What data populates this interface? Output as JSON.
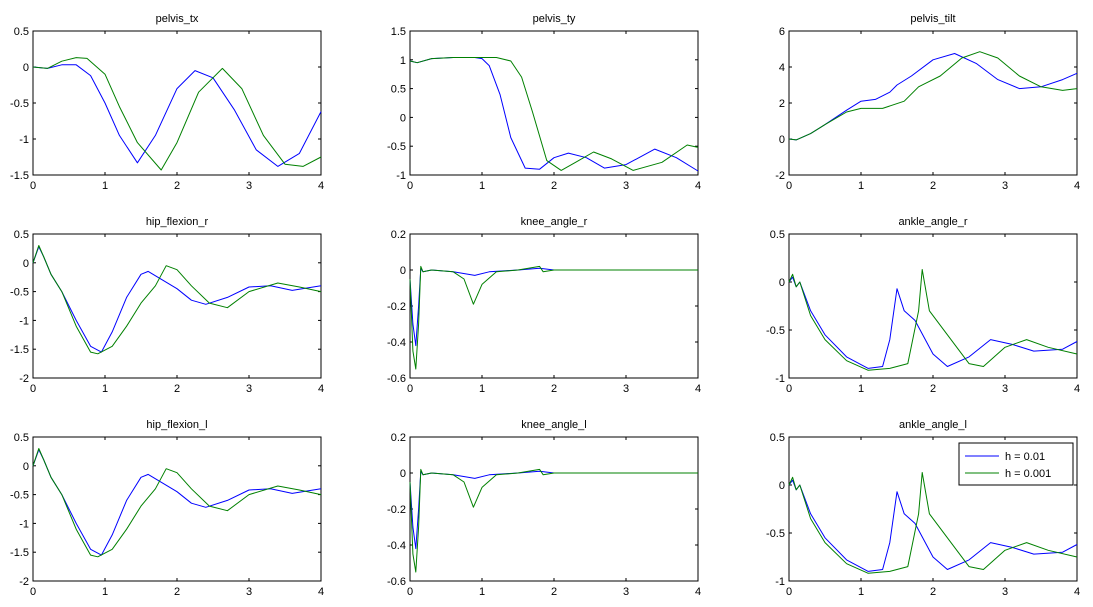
{
  "colors": {
    "h_0_01": "#0000ff",
    "h_0_001": "#008000",
    "background": "#ffffff",
    "axes": "#000000"
  },
  "legend": {
    "placement": "top-right of ankle_angle_l",
    "entries": [
      "h = 0.01",
      "h = 0.001"
    ]
  },
  "chart_data": [
    {
      "type": "line",
      "title": "pelvis_tx",
      "xlabel": "",
      "ylabel": "",
      "xlim": [
        0,
        4
      ],
      "ylim": [
        -1.5,
        0.5
      ],
      "xticks": [
        0,
        1,
        2,
        3,
        4
      ],
      "yticks": [
        -1.5,
        -1,
        -0.5,
        0,
        0.5
      ],
      "series": [
        {
          "name": "h = 0.01",
          "x": [
            0,
            0.2,
            0.4,
            0.6,
            0.8,
            1.0,
            1.2,
            1.45,
            1.7,
            2.0,
            2.25,
            2.5,
            2.8,
            3.1,
            3.4,
            3.7,
            4.0
          ],
          "y": [
            0,
            -0.02,
            0.03,
            0.03,
            -0.12,
            -0.5,
            -0.95,
            -1.33,
            -0.95,
            -0.3,
            -0.05,
            -0.15,
            -0.6,
            -1.15,
            -1.38,
            -1.2,
            -0.62
          ]
        },
        {
          "name": "h = 0.001",
          "x": [
            0,
            0.2,
            0.4,
            0.6,
            0.75,
            1.0,
            1.2,
            1.45,
            1.78,
            2.0,
            2.3,
            2.63,
            2.9,
            3.2,
            3.5,
            3.75,
            4.0
          ],
          "y": [
            0,
            -0.02,
            0.08,
            0.13,
            0.12,
            -0.1,
            -0.55,
            -1.05,
            -1.43,
            -1.05,
            -0.35,
            -0.02,
            -0.3,
            -0.95,
            -1.35,
            -1.38,
            -1.25
          ]
        }
      ]
    },
    {
      "type": "line",
      "title": "pelvis_ty",
      "xlabel": "",
      "ylabel": "",
      "xlim": [
        0,
        4
      ],
      "ylim": [
        -1,
        1.5
      ],
      "xticks": [
        0,
        1,
        2,
        3,
        4
      ],
      "yticks": [
        -1,
        -0.5,
        0,
        0.5,
        1,
        1.5
      ],
      "series": [
        {
          "name": "h = 0.01",
          "x": [
            0,
            0.1,
            0.3,
            0.6,
            0.9,
            1.0,
            1.1,
            1.25,
            1.4,
            1.6,
            1.8,
            2.0,
            2.2,
            2.45,
            2.7,
            3.0,
            3.4,
            3.7,
            4.0
          ],
          "y": [
            0.98,
            0.95,
            1.02,
            1.04,
            1.04,
            1.02,
            0.9,
            0.4,
            -0.35,
            -0.88,
            -0.9,
            -0.7,
            -0.62,
            -0.7,
            -0.88,
            -0.82,
            -0.55,
            -0.7,
            -0.93
          ]
        },
        {
          "name": "h = 0.001",
          "x": [
            0,
            0.1,
            0.3,
            0.6,
            0.9,
            1.2,
            1.4,
            1.55,
            1.7,
            1.9,
            2.1,
            2.3,
            2.55,
            2.8,
            3.1,
            3.5,
            3.85,
            4.0
          ],
          "y": [
            0.98,
            0.95,
            1.02,
            1.04,
            1.04,
            1.04,
            0.98,
            0.7,
            0.1,
            -0.75,
            -0.92,
            -0.78,
            -0.6,
            -0.72,
            -0.92,
            -0.78,
            -0.48,
            -0.52
          ]
        }
      ]
    },
    {
      "type": "line",
      "title": "pelvis_tilt",
      "xlabel": "",
      "ylabel": "",
      "xlim": [
        0,
        4
      ],
      "ylim": [
        -2,
        6
      ],
      "xticks": [
        0,
        1,
        2,
        3,
        4
      ],
      "yticks": [
        -2,
        0,
        2,
        4,
        6
      ],
      "series": [
        {
          "name": "h = 0.01",
          "x": [
            0,
            0.1,
            0.3,
            0.5,
            0.8,
            1.0,
            1.2,
            1.4,
            1.5,
            1.7,
            2.0,
            2.3,
            2.6,
            2.9,
            3.2,
            3.5,
            3.8,
            4.0
          ],
          "y": [
            0,
            -0.05,
            0.3,
            0.8,
            1.6,
            2.1,
            2.2,
            2.6,
            3.0,
            3.5,
            4.4,
            4.75,
            4.2,
            3.3,
            2.8,
            2.9,
            3.3,
            3.65
          ]
        },
        {
          "name": "h = 0.001",
          "x": [
            0,
            0.1,
            0.3,
            0.5,
            0.8,
            1.0,
            1.3,
            1.6,
            1.8,
            1.9,
            2.1,
            2.4,
            2.65,
            2.9,
            3.2,
            3.5,
            3.8,
            4.0
          ],
          "y": [
            0,
            -0.05,
            0.3,
            0.8,
            1.5,
            1.7,
            1.7,
            2.1,
            2.9,
            3.1,
            3.5,
            4.5,
            4.85,
            4.5,
            3.5,
            2.9,
            2.7,
            2.8
          ]
        }
      ]
    },
    {
      "type": "line",
      "title": "hip_flexion_r",
      "xlabel": "",
      "ylabel": "",
      "xlim": [
        0,
        4
      ],
      "ylim": [
        -2,
        0.5
      ],
      "xticks": [
        0,
        1,
        2,
        3,
        4
      ],
      "yticks": [
        -2,
        -1.5,
        -1,
        -0.5,
        0,
        0.5
      ],
      "series": [
        {
          "name": "h = 0.01",
          "x": [
            0,
            0.08,
            0.15,
            0.25,
            0.4,
            0.6,
            0.8,
            0.95,
            1.1,
            1.3,
            1.5,
            1.6,
            1.8,
            2.0,
            2.2,
            2.4,
            2.7,
            3.0,
            3.3,
            3.6,
            4.0
          ],
          "y": [
            0,
            0.28,
            0.1,
            -0.2,
            -0.5,
            -1.0,
            -1.45,
            -1.55,
            -1.2,
            -0.6,
            -0.2,
            -0.15,
            -0.3,
            -0.45,
            -0.65,
            -0.72,
            -0.6,
            -0.42,
            -0.4,
            -0.48,
            -0.4
          ]
        },
        {
          "name": "h = 0.001",
          "x": [
            0,
            0.08,
            0.15,
            0.25,
            0.4,
            0.6,
            0.8,
            0.9,
            1.1,
            1.3,
            1.5,
            1.7,
            1.85,
            2.0,
            2.2,
            2.45,
            2.7,
            3.0,
            3.4,
            3.7,
            4.0
          ],
          "y": [
            0,
            0.3,
            0.1,
            -0.2,
            -0.5,
            -1.1,
            -1.55,
            -1.58,
            -1.45,
            -1.1,
            -0.7,
            -0.4,
            -0.05,
            -0.12,
            -0.4,
            -0.7,
            -0.78,
            -0.5,
            -0.35,
            -0.42,
            -0.5
          ]
        }
      ]
    },
    {
      "type": "line",
      "title": "knee_angle_r",
      "xlabel": "",
      "ylabel": "",
      "xlim": [
        0,
        4
      ],
      "ylim": [
        -0.6,
        0.2
      ],
      "xticks": [
        0,
        1,
        2,
        3,
        4
      ],
      "yticks": [
        -0.6,
        -0.4,
        -0.2,
        0,
        0.2
      ],
      "series": [
        {
          "name": "h = 0.01",
          "x": [
            0,
            0.04,
            0.08,
            0.12,
            0.15,
            0.18,
            0.3,
            0.6,
            0.9,
            1.1,
            1.5,
            1.8,
            2.0,
            2.5,
            3.0,
            3.5,
            4.0
          ],
          "y": [
            -0.05,
            -0.3,
            -0.42,
            -0.2,
            0.01,
            -0.01,
            0,
            -0.01,
            -0.03,
            -0.01,
            0,
            0.01,
            0,
            0,
            0,
            0,
            0
          ]
        },
        {
          "name": "h = 0.001",
          "x": [
            0,
            0.04,
            0.08,
            0.12,
            0.15,
            0.18,
            0.3,
            0.6,
            0.75,
            0.88,
            1.0,
            1.2,
            1.5,
            1.8,
            1.85,
            2.0,
            2.5,
            3.0,
            4.0
          ],
          "y": [
            -0.05,
            -0.45,
            -0.55,
            -0.3,
            0.02,
            -0.01,
            0,
            -0.01,
            -0.05,
            -0.19,
            -0.08,
            -0.01,
            0,
            0.02,
            -0.01,
            0,
            0,
            0,
            0
          ]
        }
      ]
    },
    {
      "type": "line",
      "title": "ankle_angle_r",
      "xlabel": "",
      "ylabel": "",
      "xlim": [
        0,
        4
      ],
      "ylim": [
        -1,
        0.5
      ],
      "xticks": [
        0,
        1,
        2,
        3,
        4
      ],
      "yticks": [
        -1,
        -0.5,
        0,
        0.5
      ],
      "series": [
        {
          "name": "h = 0.01",
          "x": [
            0,
            0.05,
            0.1,
            0.15,
            0.3,
            0.5,
            0.8,
            1.1,
            1.3,
            1.4,
            1.5,
            1.6,
            1.75,
            2.0,
            2.2,
            2.5,
            2.8,
            3.1,
            3.4,
            3.8,
            4.0
          ],
          "y": [
            0,
            0.05,
            -0.05,
            0,
            -0.3,
            -0.55,
            -0.78,
            -0.9,
            -0.88,
            -0.6,
            -0.07,
            -0.3,
            -0.4,
            -0.75,
            -0.88,
            -0.78,
            -0.6,
            -0.65,
            -0.72,
            -0.7,
            -0.62
          ]
        },
        {
          "name": "h = 0.001",
          "x": [
            0,
            0.05,
            0.1,
            0.15,
            0.3,
            0.5,
            0.8,
            1.1,
            1.4,
            1.65,
            1.8,
            1.85,
            1.95,
            2.2,
            2.5,
            2.7,
            3.0,
            3.3,
            3.6,
            4.0
          ],
          "y": [
            0,
            0.08,
            -0.05,
            0,
            -0.35,
            -0.6,
            -0.82,
            -0.92,
            -0.9,
            -0.85,
            -0.3,
            0.13,
            -0.3,
            -0.55,
            -0.85,
            -0.88,
            -0.68,
            -0.6,
            -0.68,
            -0.75
          ]
        }
      ]
    },
    {
      "type": "line",
      "title": "hip_flexion_l",
      "xlabel": "",
      "ylabel": "",
      "xlim": [
        0,
        4
      ],
      "ylim": [
        -2,
        0.5
      ],
      "xticks": [
        0,
        1,
        2,
        3,
        4
      ],
      "yticks": [
        -2,
        -1.5,
        -1,
        -0.5,
        0,
        0.5
      ],
      "series": [
        {
          "name": "h = 0.01",
          "x": [
            0,
            0.08,
            0.15,
            0.25,
            0.4,
            0.6,
            0.8,
            0.95,
            1.1,
            1.3,
            1.5,
            1.6,
            1.8,
            2.0,
            2.2,
            2.4,
            2.7,
            3.0,
            3.3,
            3.6,
            4.0
          ],
          "y": [
            0,
            0.28,
            0.1,
            -0.2,
            -0.5,
            -1.0,
            -1.45,
            -1.55,
            -1.2,
            -0.6,
            -0.2,
            -0.15,
            -0.3,
            -0.45,
            -0.65,
            -0.72,
            -0.6,
            -0.42,
            -0.4,
            -0.48,
            -0.4
          ]
        },
        {
          "name": "h = 0.001",
          "x": [
            0,
            0.08,
            0.15,
            0.25,
            0.4,
            0.6,
            0.8,
            0.9,
            1.1,
            1.3,
            1.5,
            1.7,
            1.85,
            2.0,
            2.2,
            2.45,
            2.7,
            3.0,
            3.4,
            3.7,
            4.0
          ],
          "y": [
            0,
            0.3,
            0.1,
            -0.2,
            -0.5,
            -1.1,
            -1.55,
            -1.58,
            -1.45,
            -1.1,
            -0.7,
            -0.4,
            -0.05,
            -0.12,
            -0.4,
            -0.7,
            -0.78,
            -0.5,
            -0.35,
            -0.42,
            -0.5
          ]
        }
      ]
    },
    {
      "type": "line",
      "title": "knee_angle_l",
      "xlabel": "",
      "ylabel": "",
      "xlim": [
        0,
        4
      ],
      "ylim": [
        -0.6,
        0.2
      ],
      "xticks": [
        0,
        1,
        2,
        3,
        4
      ],
      "yticks": [
        -0.6,
        -0.4,
        -0.2,
        0,
        0.2
      ],
      "series": [
        {
          "name": "h = 0.01",
          "x": [
            0,
            0.04,
            0.08,
            0.12,
            0.15,
            0.18,
            0.3,
            0.6,
            0.9,
            1.1,
            1.5,
            1.8,
            2.0,
            2.5,
            3.0,
            3.5,
            4.0
          ],
          "y": [
            -0.05,
            -0.3,
            -0.42,
            -0.2,
            0.01,
            -0.01,
            0,
            -0.01,
            -0.03,
            -0.01,
            0,
            0.01,
            0,
            0,
            0,
            0,
            0
          ]
        },
        {
          "name": "h = 0.001",
          "x": [
            0,
            0.04,
            0.08,
            0.12,
            0.15,
            0.18,
            0.3,
            0.6,
            0.75,
            0.88,
            1.0,
            1.2,
            1.5,
            1.8,
            1.85,
            2.0,
            2.5,
            3.0,
            4.0
          ],
          "y": [
            -0.05,
            -0.45,
            -0.55,
            -0.3,
            0.02,
            -0.01,
            0,
            -0.01,
            -0.05,
            -0.19,
            -0.08,
            -0.01,
            0,
            0.02,
            -0.01,
            0,
            0,
            0,
            0
          ]
        }
      ]
    },
    {
      "type": "line",
      "title": "ankle_angle_l",
      "xlabel": "",
      "ylabel": "",
      "xlim": [
        0,
        4
      ],
      "ylim": [
        -1,
        0.5
      ],
      "xticks": [
        0,
        1,
        2,
        3,
        4
      ],
      "yticks": [
        -1,
        -0.5,
        0,
        0.5
      ],
      "legend": true,
      "series": [
        {
          "name": "h = 0.01",
          "x": [
            0,
            0.05,
            0.1,
            0.15,
            0.3,
            0.5,
            0.8,
            1.1,
            1.3,
            1.4,
            1.5,
            1.6,
            1.75,
            2.0,
            2.2,
            2.5,
            2.8,
            3.1,
            3.4,
            3.8,
            4.0
          ],
          "y": [
            0,
            0.05,
            -0.05,
            0,
            -0.3,
            -0.55,
            -0.78,
            -0.9,
            -0.88,
            -0.6,
            -0.07,
            -0.3,
            -0.4,
            -0.75,
            -0.88,
            -0.78,
            -0.6,
            -0.65,
            -0.72,
            -0.7,
            -0.62
          ]
        },
        {
          "name": "h = 0.001",
          "x": [
            0,
            0.05,
            0.1,
            0.15,
            0.3,
            0.5,
            0.8,
            1.1,
            1.4,
            1.65,
            1.8,
            1.85,
            1.95,
            2.2,
            2.5,
            2.7,
            3.0,
            3.3,
            3.6,
            4.0
          ],
          "y": [
            0,
            0.08,
            -0.05,
            0,
            -0.35,
            -0.6,
            -0.82,
            -0.92,
            -0.9,
            -0.85,
            -0.3,
            0.13,
            -0.3,
            -0.55,
            -0.85,
            -0.88,
            -0.68,
            -0.6,
            -0.68,
            -0.75
          ]
        }
      ]
    }
  ]
}
